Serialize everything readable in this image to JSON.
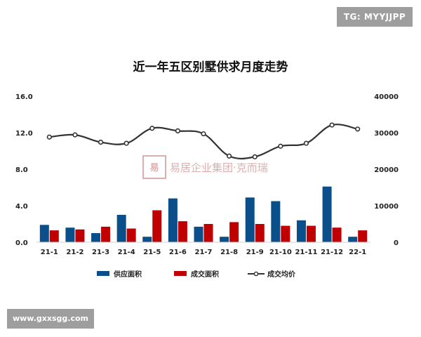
{
  "badges": {
    "telegram": "TG: MYYJJPP",
    "website": "www.gxxsgg.com"
  },
  "watermark": {
    "text": "易居企业集团·克而瑞",
    "color": "#d9a0a0"
  },
  "colors": {
    "supply": "#0b4f8a",
    "deal": "#c00000",
    "price": "#333333"
  },
  "chart_data": {
    "type": "bar",
    "title": "近一年五区别墅供求月度走势",
    "categories": [
      "21-1",
      "21-2",
      "21-3",
      "21-4",
      "21-5",
      "21-6",
      "21-7",
      "21-8",
      "21-9",
      "21-10",
      "21-11",
      "21-12",
      "22-1"
    ],
    "y_left": {
      "ticks": [
        "0.0",
        "4.0",
        "8.0",
        "12.0",
        "16.0"
      ],
      "ylim": [
        0,
        16
      ]
    },
    "y_right": {
      "ticks": [
        "0",
        "10000",
        "20000",
        "30000",
        "40000"
      ],
      "ylim": [
        0,
        40000
      ]
    },
    "grid": false,
    "legend_position": "bottom",
    "series": [
      {
        "name": "供应面积",
        "type": "bar",
        "axis": "left",
        "values": [
          1.9,
          1.6,
          1.0,
          3.0,
          0.6,
          4.8,
          1.7,
          0.6,
          4.9,
          4.5,
          2.4,
          6.1,
          0.6
        ]
      },
      {
        "name": "成交面积",
        "type": "bar",
        "axis": "left",
        "values": [
          1.3,
          1.4,
          1.7,
          1.5,
          3.5,
          2.3,
          2.0,
          2.2,
          2.0,
          1.8,
          1.8,
          1.6,
          1.3
        ]
      },
      {
        "name": "成交均价",
        "type": "line",
        "axis": "right",
        "values": [
          28800,
          29400,
          27400,
          27100,
          31200,
          30500,
          29700,
          23600,
          23400,
          26300,
          27100,
          32100,
          31000
        ]
      }
    ]
  }
}
